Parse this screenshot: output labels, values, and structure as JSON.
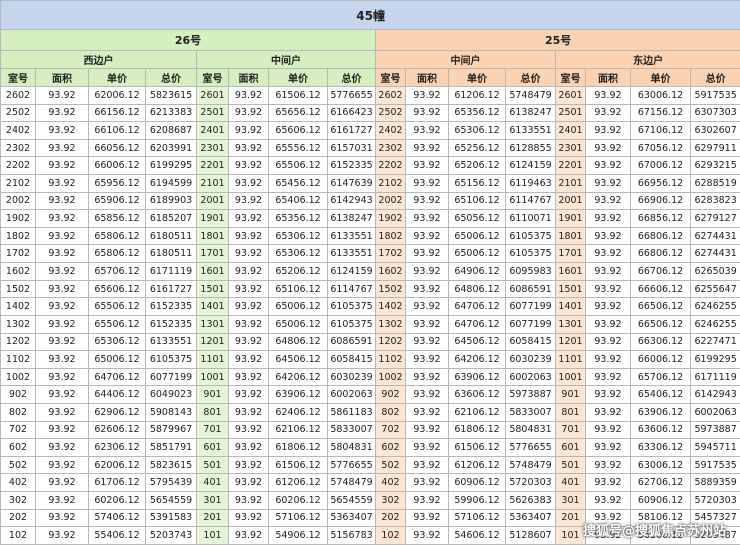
{
  "title": "45幢",
  "columns": [
    "室号",
    "面积",
    "单价",
    "总价"
  ],
  "buildings": [
    {
      "name": "26号",
      "units": [
        {
          "name": "西边户",
          "rows": [
            [
              "2602",
              "93.92",
              "62006.12",
              "5823615"
            ],
            [
              "2502",
              "93.92",
              "66156.12",
              "6213383"
            ],
            [
              "2402",
              "93.92",
              "66106.12",
              "6208687"
            ],
            [
              "2302",
              "93.92",
              "66056.12",
              "6203991"
            ],
            [
              "2202",
              "93.92",
              "66006.12",
              "6199295"
            ],
            [
              "2102",
              "93.92",
              "65956.12",
              "6194599"
            ],
            [
              "2002",
              "93.92",
              "65906.12",
              "6189903"
            ],
            [
              "1902",
              "93.92",
              "65856.12",
              "6185207"
            ],
            [
              "1802",
              "93.92",
              "65806.12",
              "6180511"
            ],
            [
              "1702",
              "93.92",
              "65806.12",
              "6180511"
            ],
            [
              "1602",
              "93.92",
              "65706.12",
              "6171119"
            ],
            [
              "1502",
              "93.92",
              "65606.12",
              "6161727"
            ],
            [
              "1402",
              "93.92",
              "65506.12",
              "6152335"
            ],
            [
              "1302",
              "93.92",
              "65506.12",
              "6152335"
            ],
            [
              "1202",
              "93.92",
              "65306.12",
              "6133551"
            ],
            [
              "1102",
              "93.92",
              "65006.12",
              "6105375"
            ],
            [
              "1002",
              "93.92",
              "64706.12",
              "6077199"
            ],
            [
              "902",
              "93.92",
              "64406.12",
              "6049023"
            ],
            [
              "802",
              "93.92",
              "62906.12",
              "5908143"
            ],
            [
              "702",
              "93.92",
              "62606.12",
              "5879967"
            ],
            [
              "602",
              "93.92",
              "62306.12",
              "5851791"
            ],
            [
              "502",
              "93.92",
              "62006.12",
              "5823615"
            ],
            [
              "402",
              "93.92",
              "61706.12",
              "5795439"
            ],
            [
              "302",
              "93.92",
              "60206.12",
              "5654559"
            ],
            [
              "202",
              "93.92",
              "57406.12",
              "5391583"
            ],
            [
              "102",
              "93.92",
              "55406.12",
              "5203743"
            ]
          ]
        },
        {
          "name": "中间户",
          "rows": [
            [
              "2601",
              "93.92",
              "61506.12",
              "5776655"
            ],
            [
              "2501",
              "93.92",
              "65656.12",
              "6166423"
            ],
            [
              "2401",
              "93.92",
              "65606.12",
              "6161727"
            ],
            [
              "2301",
              "93.92",
              "65556.12",
              "6157031"
            ],
            [
              "2201",
              "93.92",
              "65506.12",
              "6152335"
            ],
            [
              "2101",
              "93.92",
              "65456.12",
              "6147639"
            ],
            [
              "2001",
              "93.92",
              "65406.12",
              "6142943"
            ],
            [
              "1901",
              "93.92",
              "65356.12",
              "6138247"
            ],
            [
              "1801",
              "93.92",
              "65306.12",
              "6133551"
            ],
            [
              "1701",
              "93.92",
              "65306.12",
              "6133551"
            ],
            [
              "1601",
              "93.92",
              "65206.12",
              "6124159"
            ],
            [
              "1501",
              "93.92",
              "65106.12",
              "6114767"
            ],
            [
              "1401",
              "93.92",
              "65006.12",
              "6105375"
            ],
            [
              "1301",
              "93.92",
              "65006.12",
              "6105375"
            ],
            [
              "1201",
              "93.92",
              "64806.12",
              "6086591"
            ],
            [
              "1101",
              "93.92",
              "64506.12",
              "6058415"
            ],
            [
              "1001",
              "93.92",
              "64206.12",
              "6030239"
            ],
            [
              "901",
              "93.92",
              "63906.12",
              "6002063"
            ],
            [
              "801",
              "93.92",
              "62406.12",
              "5861183"
            ],
            [
              "701",
              "93.92",
              "62106.12",
              "5833007"
            ],
            [
              "601",
              "93.92",
              "61806.12",
              "5804831"
            ],
            [
              "501",
              "93.92",
              "61506.12",
              "5776655"
            ],
            [
              "401",
              "93.92",
              "61206.12",
              "5748479"
            ],
            [
              "301",
              "93.92",
              "60206.12",
              "5654559"
            ],
            [
              "201",
              "93.92",
              "57106.12",
              "5363407"
            ],
            [
              "101",
              "93.92",
              "54906.12",
              "5156783"
            ]
          ]
        }
      ]
    },
    {
      "name": "25号",
      "units": [
        {
          "name": "中间户",
          "rows": [
            [
              "2602",
              "93.92",
              "61206.12",
              "5748479"
            ],
            [
              "2502",
              "93.92",
              "65356.12",
              "6138247"
            ],
            [
              "2402",
              "93.92",
              "65306.12",
              "6133551"
            ],
            [
              "2302",
              "93.92",
              "65256.12",
              "6128855"
            ],
            [
              "2202",
              "93.92",
              "65206.12",
              "6124159"
            ],
            [
              "2102",
              "93.92",
              "65156.12",
              "6119463"
            ],
            [
              "2002",
              "93.92",
              "65106.12",
              "6114767"
            ],
            [
              "1902",
              "93.92",
              "65056.12",
              "6110071"
            ],
            [
              "1802",
              "93.92",
              "65006.12",
              "6105375"
            ],
            [
              "1702",
              "93.92",
              "65006.12",
              "6105375"
            ],
            [
              "1602",
              "93.92",
              "64906.12",
              "6095983"
            ],
            [
              "1502",
              "93.92",
              "64806.12",
              "6086591"
            ],
            [
              "1402",
              "93.92",
              "64706.12",
              "6077199"
            ],
            [
              "1302",
              "93.92",
              "64706.12",
              "6077199"
            ],
            [
              "1202",
              "93.92",
              "64506.12",
              "6058415"
            ],
            [
              "1102",
              "93.92",
              "64206.12",
              "6030239"
            ],
            [
              "1002",
              "93.92",
              "63906.12",
              "6002063"
            ],
            [
              "902",
              "93.92",
              "63606.12",
              "5973887"
            ],
            [
              "802",
              "93.92",
              "62106.12",
              "5833007"
            ],
            [
              "702",
              "93.92",
              "61806.12",
              "5804831"
            ],
            [
              "602",
              "93.92",
              "61506.12",
              "5776655"
            ],
            [
              "502",
              "93.92",
              "61206.12",
              "5748479"
            ],
            [
              "402",
              "93.92",
              "60906.12",
              "5720303"
            ],
            [
              "302",
              "93.92",
              "59906.12",
              "5626383"
            ],
            [
              "202",
              "93.92",
              "57106.12",
              "5363407"
            ],
            [
              "102",
              "93.92",
              "54606.12",
              "5128607"
            ]
          ]
        },
        {
          "name": "东边户",
          "rows": [
            [
              "2601",
              "93.92",
              "63006.12",
              "5917535"
            ],
            [
              "2501",
              "93.92",
              "67156.12",
              "6307303"
            ],
            [
              "2401",
              "93.92",
              "67106.12",
              "6302607"
            ],
            [
              "2301",
              "93.92",
              "67056.12",
              "6297911"
            ],
            [
              "2201",
              "93.92",
              "67006.12",
              "6293215"
            ],
            [
              "2101",
              "93.92",
              "66956.12",
              "6288519"
            ],
            [
              "2001",
              "93.92",
              "66906.12",
              "6283823"
            ],
            [
              "1901",
              "93.92",
              "66856.12",
              "6279127"
            ],
            [
              "1801",
              "93.92",
              "66806.12",
              "6274431"
            ],
            [
              "1701",
              "93.92",
              "66806.12",
              "6274431"
            ],
            [
              "1601",
              "93.92",
              "66706.12",
              "6265039"
            ],
            [
              "1501",
              "93.92",
              "66606.12",
              "6255647"
            ],
            [
              "1401",
              "93.92",
              "66506.12",
              "6246255"
            ],
            [
              "1301",
              "93.92",
              "66506.12",
              "6246255"
            ],
            [
              "1201",
              "93.92",
              "66306.12",
              "6227471"
            ],
            [
              "1101",
              "93.92",
              "66006.12",
              "6199295"
            ],
            [
              "1001",
              "93.92",
              "65706.12",
              "6171119"
            ],
            [
              "901",
              "93.92",
              "65406.12",
              "6142943"
            ],
            [
              "801",
              "93.92",
              "63906.12",
              "6002063"
            ],
            [
              "701",
              "93.92",
              "63606.12",
              "5973887"
            ],
            [
              "601",
              "93.92",
              "63306.12",
              "5945711"
            ],
            [
              "501",
              "93.92",
              "63006.12",
              "5917535"
            ],
            [
              "401",
              "93.92",
              "62706.12",
              "5889359"
            ],
            [
              "301",
              "93.92",
              "60906.12",
              "5720303"
            ],
            [
              "201",
              "93.92",
              "58106.12",
              "5457327"
            ],
            [
              "101",
              "93.92",
              "56106.12",
              "5269487"
            ]
          ]
        }
      ]
    }
  ],
  "watermark": "搜狐号@搜狐焦点苏州站"
}
